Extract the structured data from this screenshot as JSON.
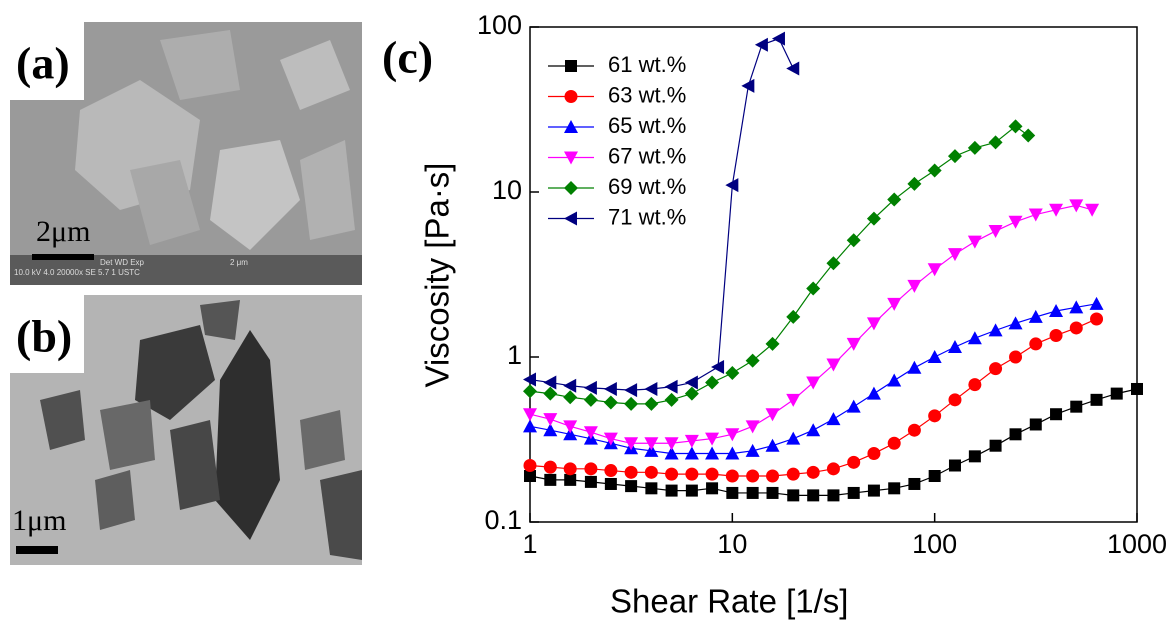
{
  "panels": {
    "a": {
      "label": "(a)",
      "scale_bar": "2μm",
      "info_header": "Det  WD  Exp",
      "info": "10.0 kV 4.0  20000x  SE  5.7  1    USTC",
      "info_scale": "2 μm"
    },
    "b": {
      "label": "(b)",
      "scale_bar": "1μm"
    },
    "c": {
      "label": "(c)"
    }
  },
  "chart_data": {
    "type": "line",
    "xlabel": "Shear Rate [1/s]",
    "ylabel": "Viscosity [Pa·s]",
    "xscale": "log",
    "yscale": "log",
    "xlim": [
      1,
      1000
    ],
    "ylim": [
      0.1,
      100
    ],
    "xticks": [
      1,
      10,
      100,
      1000
    ],
    "yticks": [
      0.1,
      1,
      10,
      100
    ],
    "legend": "upper left",
    "series": [
      {
        "name": "61 wt.%",
        "color": "#000000",
        "marker": "square",
        "x": [
          1,
          1.26,
          1.58,
          2,
          2.51,
          3.16,
          3.98,
          5.01,
          6.31,
          7.94,
          10,
          12.6,
          15.8,
          20,
          25.1,
          31.6,
          39.8,
          50.1,
          63.1,
          79.4,
          100,
          126,
          158,
          200,
          251,
          316,
          398,
          501,
          631,
          794,
          1000
        ],
        "values": [
          0.19,
          0.18,
          0.18,
          0.175,
          0.17,
          0.165,
          0.16,
          0.155,
          0.155,
          0.16,
          0.15,
          0.15,
          0.15,
          0.145,
          0.145,
          0.145,
          0.15,
          0.155,
          0.16,
          0.17,
          0.19,
          0.22,
          0.25,
          0.29,
          0.34,
          0.39,
          0.45,
          0.5,
          0.55,
          0.6,
          0.64
        ]
      },
      {
        "name": "63 wt.%",
        "color": "#ff0000",
        "marker": "circle",
        "x": [
          1,
          1.26,
          1.58,
          2,
          2.51,
          3.16,
          3.98,
          5.01,
          6.31,
          7.94,
          10,
          12.6,
          15.8,
          20,
          25.1,
          31.6,
          39.8,
          50.1,
          63.1,
          79.4,
          100,
          126,
          158,
          200,
          251,
          316,
          398,
          501,
          631
        ],
        "values": [
          0.22,
          0.215,
          0.21,
          0.21,
          0.205,
          0.2,
          0.2,
          0.195,
          0.195,
          0.195,
          0.19,
          0.19,
          0.19,
          0.195,
          0.2,
          0.21,
          0.23,
          0.26,
          0.3,
          0.36,
          0.44,
          0.55,
          0.68,
          0.85,
          1.0,
          1.2,
          1.35,
          1.5,
          1.7
        ]
      },
      {
        "name": "65 wt.%",
        "color": "#0000ff",
        "marker": "triangle-up",
        "x": [
          1,
          1.26,
          1.58,
          2,
          2.51,
          3.16,
          3.98,
          5.01,
          6.31,
          7.94,
          10,
          12.6,
          15.8,
          20,
          25.1,
          31.6,
          39.8,
          50.1,
          63.1,
          79.4,
          100,
          126,
          158,
          200,
          251,
          316,
          398,
          501,
          631
        ],
        "values": [
          0.38,
          0.36,
          0.34,
          0.32,
          0.3,
          0.28,
          0.27,
          0.26,
          0.26,
          0.26,
          0.26,
          0.27,
          0.29,
          0.32,
          0.36,
          0.42,
          0.5,
          0.6,
          0.72,
          0.86,
          1.0,
          1.15,
          1.3,
          1.45,
          1.6,
          1.75,
          1.9,
          2.0,
          2.1
        ]
      },
      {
        "name": "67 wt.%",
        "color": "#ff00ff",
        "marker": "triangle-down",
        "x": [
          1,
          1.26,
          1.58,
          2,
          2.51,
          3.16,
          3.98,
          5.01,
          6.31,
          7.94,
          10,
          12.6,
          15.8,
          20,
          25.1,
          31.6,
          39.8,
          50.1,
          63.1,
          79.4,
          100,
          126,
          158,
          200,
          251,
          316,
          398,
          501,
          600
        ],
        "values": [
          0.45,
          0.42,
          0.38,
          0.35,
          0.32,
          0.3,
          0.3,
          0.3,
          0.31,
          0.32,
          0.34,
          0.38,
          0.45,
          0.55,
          0.7,
          0.9,
          1.2,
          1.6,
          2.1,
          2.7,
          3.4,
          4.2,
          5.0,
          5.8,
          6.6,
          7.3,
          7.8,
          8.3,
          7.8
        ]
      },
      {
        "name": "69 wt.%",
        "color": "#008000",
        "marker": "diamond",
        "x": [
          1,
          1.26,
          1.58,
          2,
          2.51,
          3.16,
          3.98,
          5.01,
          6.31,
          7.94,
          10,
          12.6,
          15.8,
          20,
          25.1,
          31.6,
          39.8,
          50.1,
          63.1,
          79.4,
          100,
          126,
          158,
          200,
          251,
          290
        ],
        "values": [
          0.62,
          0.6,
          0.57,
          0.55,
          0.53,
          0.52,
          0.52,
          0.55,
          0.6,
          0.7,
          0.8,
          0.95,
          1.2,
          1.75,
          2.6,
          3.7,
          5.1,
          6.9,
          9,
          11.2,
          13.5,
          16.5,
          18.5,
          20,
          25,
          22
        ]
      },
      {
        "name": "71 wt.%",
        "color": "#000080",
        "marker": "triangle-left",
        "x": [
          1,
          1.26,
          1.58,
          2,
          2.51,
          3.16,
          3.98,
          5.01,
          6.31,
          8.5,
          10,
          12,
          14,
          17,
          20
        ],
        "values": [
          0.73,
          0.7,
          0.67,
          0.65,
          0.64,
          0.63,
          0.64,
          0.66,
          0.7,
          0.87,
          11,
          44,
          78,
          85,
          56
        ]
      }
    ]
  }
}
